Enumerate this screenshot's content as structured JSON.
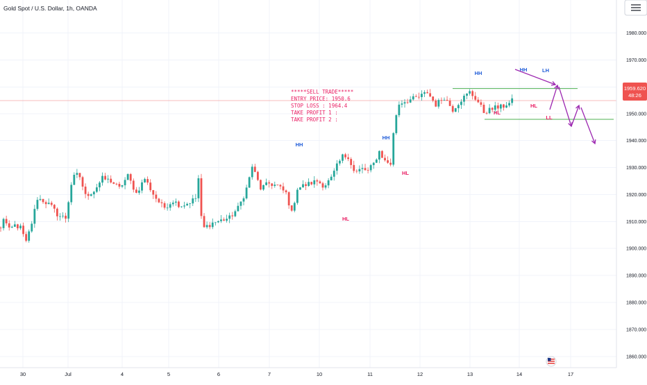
{
  "header": {
    "title": "Gold Spot / U.S. Dollar, 1h, OANDA"
  },
  "price_tag": {
    "price": "1959.620",
    "countdown": "48:26"
  },
  "note": {
    "lines": [
      "*****SELL TRADE*****",
      "ENTRY PRICE: 1950.6",
      "STOP LOSS : 1964.4",
      "TAKE PROFIT 1 :",
      "TAKE PROFIT 2 :"
    ]
  },
  "colors": {
    "up": "#26a69a",
    "down": "#ef5350",
    "hh": "#1e5bd8",
    "hl": "#e91e63",
    "arrow": "#9c27b0",
    "level": "#4caf50",
    "price_line": "#f4a6a6"
  },
  "icons": {
    "menu": "hamburger-icon",
    "flag": "us-flag-icon"
  },
  "chart_data": {
    "type": "candlestick",
    "title": "Gold Spot / U.S. Dollar, 1h, OANDA",
    "x_ticks": [
      "30",
      "Jul",
      "4",
      "5",
      "6",
      "7",
      "10",
      "11",
      "12",
      "13",
      "14",
      "17"
    ],
    "y_ticks": [
      "1980.000",
      "1970.000",
      "1960.000",
      "1950.000",
      "1940.000",
      "1930.000",
      "1920.000",
      "1910.000",
      "1900.000",
      "1890.000",
      "1880.000",
      "1870.000",
      "1860.000"
    ],
    "ylim": [
      1856,
      1992
    ],
    "grid": true,
    "last_price": 1959.62,
    "segments": [
      {
        "bars": 8,
        "path": [
          1903,
          1912,
          1907,
          1909,
          1908
        ]
      },
      {
        "bars": 8,
        "path": [
          1908,
          1902,
          1910,
          1920,
          1919
        ]
      },
      {
        "bars": 8,
        "path": [
          1919,
          1917,
          1913,
          1912
        ]
      },
      {
        "bars": 7,
        "path": [
          1912,
          1928,
          1930,
          1921
        ]
      },
      {
        "bars": 9,
        "path": [
          1921,
          1923,
          1928,
          1927
        ]
      },
      {
        "bars": 12,
        "path": [
          1927,
          1924,
          1929,
          1922,
          1928
        ]
      },
      {
        "bars": 10,
        "path": [
          1928,
          1921,
          1916,
          1919
        ]
      },
      {
        "bars": 8,
        "path": [
          1919,
          1917,
          1918,
          1920
        ]
      },
      {
        "bars": 3,
        "path": [
          1920,
          1928,
          1912,
          1908
        ]
      },
      {
        "bars": 12,
        "path": [
          1908,
          1910,
          1911,
          1912,
          1916
        ]
      },
      {
        "bars": 5,
        "path": [
          1916,
          1920,
          1925,
          1933
        ]
      },
      {
        "bars": 12,
        "path": [
          1933,
          1924,
          1926,
          1925,
          1922
        ]
      },
      {
        "bars": 6,
        "path": [
          1922,
          1914,
          1924,
          1925
        ]
      },
      {
        "bars": 10,
        "path": [
          1925,
          1926,
          1927,
          1925,
          1928
        ]
      },
      {
        "bars": 6,
        "path": [
          1928,
          1933,
          1937,
          1937
        ]
      },
      {
        "bars": 7,
        "path": [
          1937,
          1930,
          1932,
          1931
        ]
      },
      {
        "bars": 8,
        "path": [
          1931,
          1934,
          1939,
          1935,
          1934
        ]
      },
      {
        "bars": 4,
        "path": [
          1934,
          1950,
          1958,
          1959
        ]
      },
      {
        "bars": 12,
        "path": [
          1959,
          1960,
          1961,
          1963,
          1958
        ]
      },
      {
        "bars": 12,
        "path": [
          1958,
          1961,
          1956,
          1960,
          1963
        ]
      },
      {
        "bars": 10,
        "path": [
          1963,
          1960,
          1955,
          1956,
          1957
        ]
      },
      {
        "bars": 5,
        "path": [
          1957,
          1959,
          1955,
          1959,
          1960
        ]
      }
    ],
    "levels": [
      1964.5,
      1952.0
    ],
    "markers": [
      {
        "label": "HH",
        "kind": "HH",
        "x": "Jul 9 15:00",
        "y": 1940.5
      },
      {
        "label": "HL",
        "kind": "HL",
        "x": "Jul 10 14:00",
        "y": 1910.5
      },
      {
        "label": "HH",
        "kind": "HH",
        "x": "Jul 11 12:00",
        "y": 1940.5
      },
      {
        "label": "HL",
        "kind": "HL",
        "x": "Jul 11 19:00",
        "y": 1928.0
      },
      {
        "label": "HH",
        "kind": "HH",
        "x": "Jul 13 04:00",
        "y": 1966.0
      },
      {
        "label": "HL",
        "kind": "HL",
        "x": "Jul 13 14:00",
        "y": 1949.5
      },
      {
        "label": "HH",
        "kind": "HH",
        "x": "Jul 14 02:00",
        "y": 1967.0
      },
      {
        "label": "LH",
        "kind": "HH",
        "x": "Jul 14 15:00",
        "y": 1967.0
      },
      {
        "label": "HL",
        "kind": "HL",
        "x": "Jul 14 10:00",
        "y": 1952.0
      },
      {
        "label": "LL",
        "kind": "HL",
        "x": "Jul 14 16:00",
        "y": 1948.0
      }
    ]
  }
}
